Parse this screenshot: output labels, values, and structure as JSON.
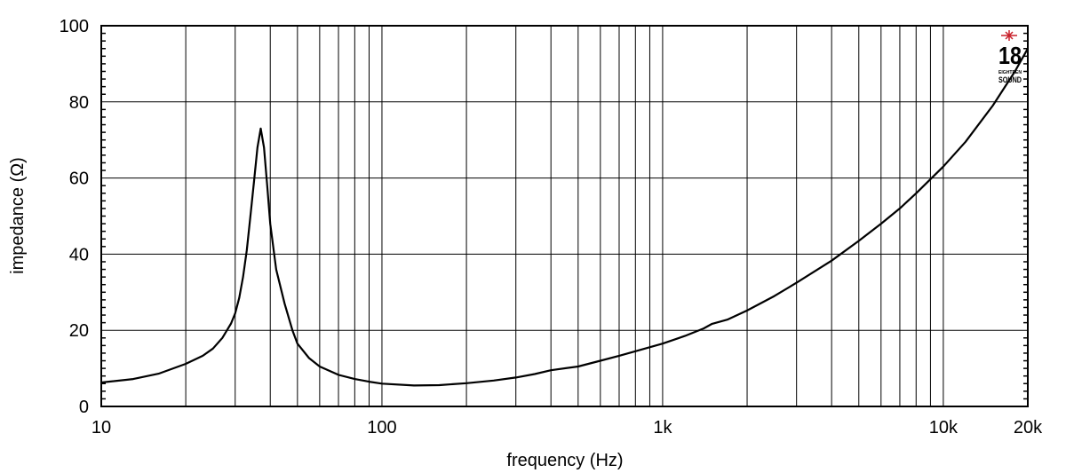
{
  "chart_data": {
    "type": "line",
    "title": "",
    "xlabel": "frequency (Hz)",
    "ylabel": "impedance (Ω)",
    "xscale": "log",
    "xlim": [
      10,
      20000
    ],
    "ylim": [
      0,
      100
    ],
    "grid": true,
    "legend": null,
    "x_tick_labels": [
      {
        "value": 10,
        "label": "10"
      },
      {
        "value": 100,
        "label": "100"
      },
      {
        "value": 1000,
        "label": "1k"
      },
      {
        "value": 10000,
        "label": "10k"
      },
      {
        "value": 20000,
        "label": "20k"
      }
    ],
    "y_tick_labels": [
      {
        "value": 0,
        "label": "0"
      },
      {
        "value": 20,
        "label": "20"
      },
      {
        "value": 40,
        "label": "40"
      },
      {
        "value": 60,
        "label": "60"
      },
      {
        "value": 80,
        "label": "80"
      },
      {
        "value": 100,
        "label": "100"
      }
    ],
    "x_grid": [
      20,
      30,
      40,
      50,
      60,
      70,
      80,
      90,
      100,
      200,
      300,
      400,
      500,
      600,
      700,
      800,
      900,
      1000,
      2000,
      3000,
      4000,
      5000,
      6000,
      7000,
      8000,
      9000,
      10000
    ],
    "y_grid": [
      20,
      40,
      60,
      80
    ],
    "series": [
      {
        "name": "impedance",
        "color": "#000000",
        "x": [
          10,
          13,
          16,
          20,
          23,
          25,
          27,
          29,
          30,
          31,
          32,
          33,
          34,
          35,
          36,
          37,
          38,
          39,
          40,
          42,
          45,
          48,
          50,
          55,
          60,
          70,
          80,
          90,
          100,
          130,
          160,
          200,
          250,
          300,
          350,
          400,
          500,
          600,
          700,
          800,
          1000,
          1200,
          1400,
          1500,
          1700,
          2000,
          2500,
          3000,
          4000,
          5000,
          6000,
          7000,
          8000,
          10000,
          12000,
          15000,
          18000,
          20000
        ],
        "y": [
          6.3,
          7.2,
          8.6,
          11.2,
          13.3,
          15.2,
          18.0,
          21.8,
          24.5,
          28.5,
          34,
          41,
          50,
          59,
          68,
          73,
          68,
          58,
          48,
          36,
          27,
          20,
          16.5,
          12.7,
          10.5,
          8.3,
          7.2,
          6.5,
          6.0,
          5.5,
          5.6,
          6.1,
          6.8,
          7.6,
          8.5,
          9.5,
          10.5,
          12,
          13.3,
          14.5,
          16.5,
          18.5,
          20.5,
          21.7,
          22.8,
          25.2,
          29,
          32.5,
          38.3,
          43.5,
          48,
          52,
          56,
          63,
          69.5,
          79,
          88,
          94
        ]
      }
    ],
    "annotations": [
      {
        "type": "logo",
        "text": "18",
        "subtext_top": "EIGHTEEN",
        "subtext_bottom": "SOUND",
        "accent_color": "#c8202a",
        "position": "top-right"
      }
    ]
  },
  "logo": {
    "number": "18",
    "small_text": "EIGHTEEN",
    "brand_text": "SOUND",
    "star_color": "#c8202a"
  },
  "colors": {
    "background": "#ffffff",
    "curve": "#000000",
    "grid": "#000000",
    "frame": "#000000"
  }
}
